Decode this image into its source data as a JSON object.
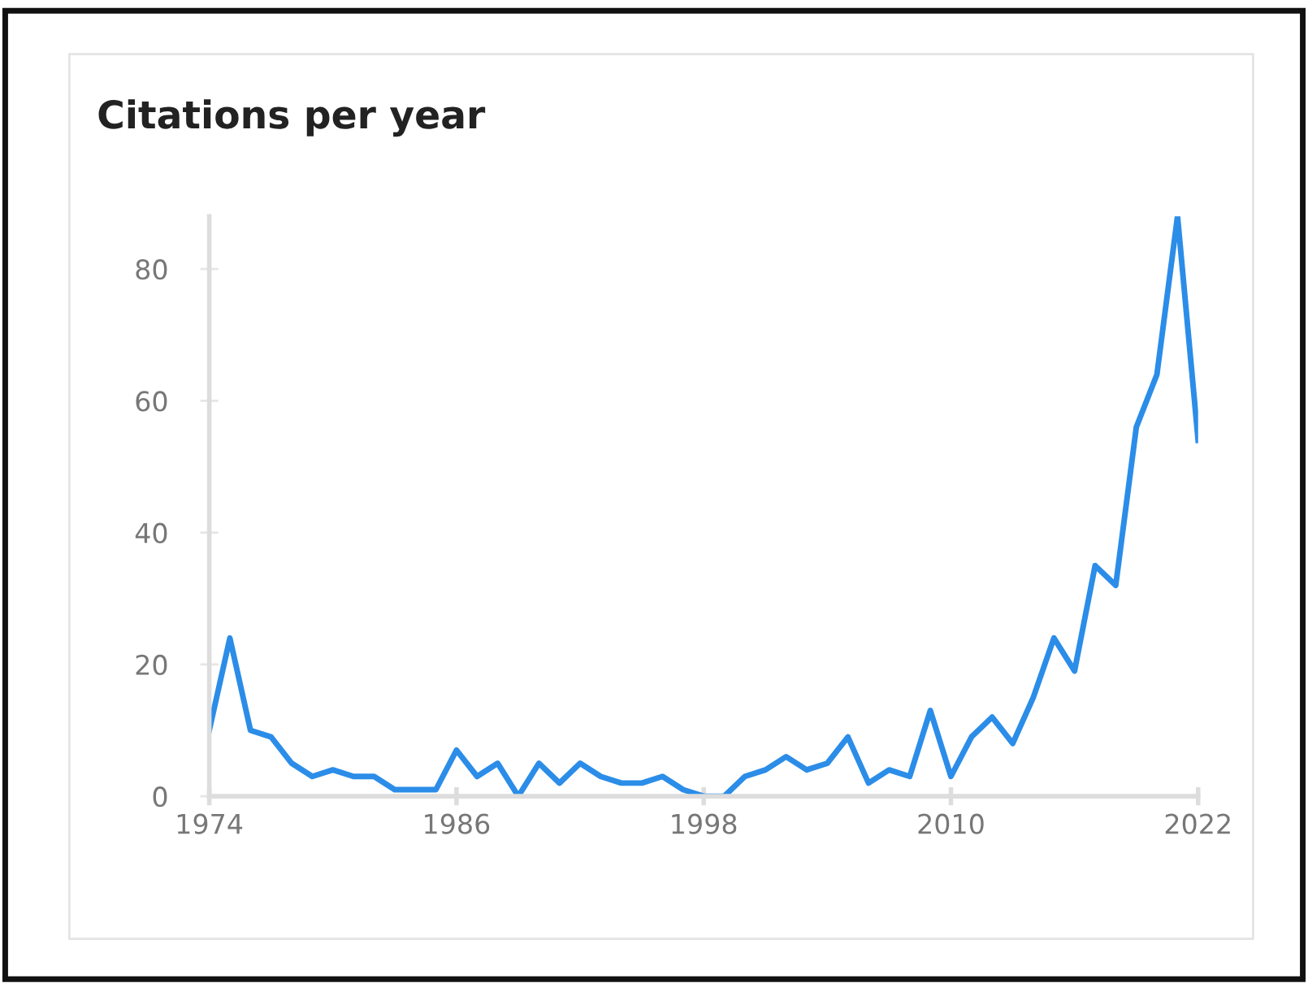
{
  "chart_data": {
    "type": "line",
    "title": "Citations per year",
    "x": [
      1974,
      1975,
      1976,
      1977,
      1978,
      1979,
      1980,
      1981,
      1982,
      1983,
      1984,
      1985,
      1986,
      1987,
      1988,
      1989,
      1990,
      1991,
      1992,
      1993,
      1994,
      1995,
      1996,
      1997,
      1998,
      1999,
      2000,
      2001,
      2002,
      2003,
      2004,
      2005,
      2006,
      2007,
      2008,
      2009,
      2010,
      2011,
      2012,
      2013,
      2014,
      2015,
      2016,
      2017,
      2018,
      2019,
      2020,
      2021,
      2022
    ],
    "series": [
      {
        "color": "#2b8de8",
        "values": [
          10,
          24,
          10,
          9,
          5,
          3,
          4,
          3,
          3,
          1,
          1,
          1,
          7,
          3,
          5,
          0,
          5,
          2,
          5,
          3,
          2,
          2,
          3,
          1,
          0,
          0,
          3,
          4,
          6,
          4,
          5,
          9,
          2,
          4,
          3,
          13,
          3,
          9,
          12,
          8,
          15,
          24,
          19,
          35,
          32,
          56,
          64,
          88,
          54
        ]
      }
    ],
    "xlim": [
      1974,
      2022
    ],
    "ylim": [
      0,
      88
    ],
    "xticks": [
      1974,
      1986,
      1998,
      2010,
      2022
    ],
    "yticks": [
      0,
      20,
      40,
      60,
      80
    ],
    "marker": "none",
    "line_style": "solid"
  }
}
